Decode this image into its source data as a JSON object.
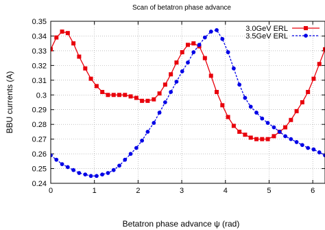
{
  "chart_data": {
    "type": "line",
    "title": "Scan of betatron phase advance",
    "xlabel": "Betatron phase advance ψ (rad)",
    "ylabel": "BBU currents (A)",
    "xlim": [
      0,
      6.28
    ],
    "ylim": [
      0.24,
      0.35
    ],
    "xticks": [
      0,
      1,
      2,
      3,
      4,
      5,
      6
    ],
    "yticks": [
      0.24,
      0.25,
      0.26,
      0.27,
      0.28,
      0.29,
      0.3,
      0.31,
      0.32,
      0.33,
      0.34,
      0.35
    ],
    "xtick_labels": [
      "0",
      "1",
      "2",
      "3",
      "4",
      "5",
      "6"
    ],
    "ytick_labels": [
      "0.24",
      "0.25",
      "0.26",
      "0.27",
      "0.28",
      "0.29",
      "0.3",
      "0.31",
      "0.32",
      "0.33",
      "0.34",
      "0.35"
    ],
    "grid": true,
    "legend_position": "top-right",
    "series": [
      {
        "name": "3.0GeV ERL",
        "color": "#e8000b",
        "marker": "square",
        "line": "solid",
        "x": [
          0.0,
          0.13,
          0.26,
          0.39,
          0.52,
          0.65,
          0.79,
          0.92,
          1.05,
          1.18,
          1.31,
          1.44,
          1.57,
          1.7,
          1.83,
          1.96,
          2.09,
          2.22,
          2.36,
          2.49,
          2.62,
          2.75,
          2.88,
          3.01,
          3.14,
          3.27,
          3.4,
          3.53,
          3.67,
          3.8,
          3.93,
          4.06,
          4.19,
          4.32,
          4.45,
          4.58,
          4.71,
          4.84,
          4.97,
          5.11,
          5.24,
          5.37,
          5.5,
          5.63,
          5.76,
          5.89,
          6.02,
          6.15,
          6.28
        ],
        "y": [
          0.331,
          0.339,
          0.343,
          0.342,
          0.335,
          0.326,
          0.318,
          0.311,
          0.306,
          0.302,
          0.3,
          0.3,
          0.3,
          0.3,
          0.299,
          0.298,
          0.296,
          0.296,
          0.297,
          0.301,
          0.307,
          0.314,
          0.322,
          0.329,
          0.334,
          0.335,
          0.333,
          0.325,
          0.313,
          0.302,
          0.293,
          0.285,
          0.279,
          0.275,
          0.273,
          0.271,
          0.27,
          0.27,
          0.27,
          0.272,
          0.275,
          0.278,
          0.283,
          0.289,
          0.295,
          0.302,
          0.311,
          0.321,
          0.331
        ]
      },
      {
        "name": "3.5GeV ERL",
        "color": "#0000e6",
        "marker": "circle",
        "line": "dashed",
        "x": [
          0.0,
          0.13,
          0.26,
          0.39,
          0.52,
          0.65,
          0.79,
          0.92,
          1.05,
          1.18,
          1.31,
          1.44,
          1.57,
          1.7,
          1.83,
          1.96,
          2.09,
          2.22,
          2.36,
          2.49,
          2.62,
          2.75,
          2.88,
          3.01,
          3.14,
          3.27,
          3.4,
          3.53,
          3.67,
          3.8,
          3.93,
          4.06,
          4.19,
          4.32,
          4.45,
          4.58,
          4.71,
          4.84,
          4.97,
          5.11,
          5.24,
          5.37,
          5.5,
          5.63,
          5.76,
          5.89,
          6.02,
          6.15,
          6.28
        ],
        "y": [
          0.259,
          0.256,
          0.253,
          0.251,
          0.249,
          0.247,
          0.246,
          0.245,
          0.245,
          0.246,
          0.247,
          0.249,
          0.252,
          0.256,
          0.26,
          0.264,
          0.269,
          0.275,
          0.281,
          0.288,
          0.295,
          0.302,
          0.309,
          0.316,
          0.322,
          0.329,
          0.334,
          0.339,
          0.343,
          0.344,
          0.338,
          0.329,
          0.318,
          0.307,
          0.298,
          0.292,
          0.288,
          0.284,
          0.281,
          0.278,
          0.275,
          0.272,
          0.27,
          0.268,
          0.266,
          0.264,
          0.263,
          0.261,
          0.259
        ]
      }
    ]
  }
}
